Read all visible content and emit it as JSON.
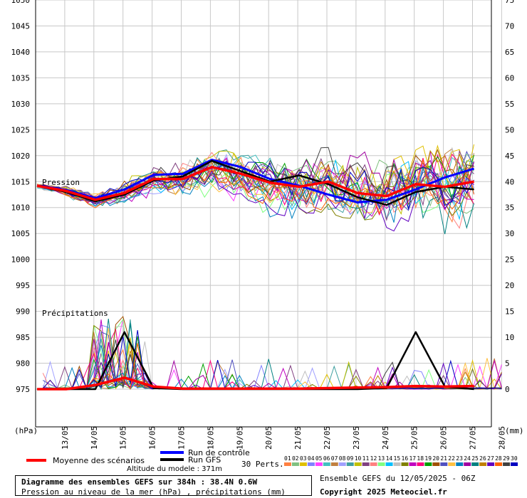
{
  "chart_data": {
    "type": "line",
    "x_dates": [
      "13/05",
      "14/05",
      "15/05",
      "16/05",
      "17/05",
      "18/05",
      "19/05",
      "20/05",
      "21/05",
      "22/05",
      "23/05",
      "24/05",
      "25/05",
      "26/05",
      "27/05",
      "28/05"
    ],
    "left_axis": {
      "label": "(hPa)",
      "min": 975,
      "max": 1050,
      "ticks": [
        1050,
        1045,
        1040,
        1035,
        1030,
        1025,
        1020,
        1015,
        1010,
        1005,
        1000,
        995,
        990,
        985,
        980,
        975
      ]
    },
    "right_axis": {
      "label": "(mm)",
      "min": 0,
      "max": 75,
      "ticks": [
        75,
        70,
        65,
        60,
        55,
        50,
        45,
        40,
        35,
        30,
        25,
        20,
        15,
        10,
        5,
        0
      ]
    },
    "panel_labels": {
      "pressure": "Pression",
      "precip": "Précipitations"
    },
    "mean_pressure": [
      1014.2,
      1013.2,
      1011.5,
      1012.8,
      1015.5,
      1015.5,
      1017.8,
      1016.5,
      1014.8,
      1014.0,
      1015.0,
      1012.8,
      1012.2,
      1014.5,
      1014.0,
      1015.0
    ],
    "control_pressure": [
      1014.2,
      1013.4,
      1011.8,
      1013.5,
      1016.3,
      1016.5,
      1019.2,
      1017.8,
      1015.5,
      1014.2,
      1012.5,
      1011.0,
      1011.5,
      1013.5,
      1015.8,
      1017.5
    ],
    "gfs_pressure": [
      1014.2,
      1013.0,
      1011.2,
      1012.5,
      1015.2,
      1016.0,
      1019.0,
      1017.0,
      1015.0,
      1016.2,
      1014.5,
      1012.0,
      1010.5,
      1013.0,
      1014.0,
      1013.5
    ],
    "mean_precip": [
      0,
      0,
      0.8,
      2.2,
      0.5,
      0.1,
      0.1,
      0.1,
      0.1,
      0.1,
      0.2,
      0.3,
      0.4,
      0.6,
      0.5,
      0.6
    ],
    "gfs_precip": [
      0,
      0,
      0,
      11.0,
      0.2,
      0,
      0,
      0,
      0,
      0,
      0,
      0,
      0.2,
      11.0,
      0.5,
      0
    ],
    "legend": {
      "mean": "Moyenne des scénarios",
      "control": "Run de contrôle",
      "gfs": "Run GFS",
      "perts": "30 Perts."
    },
    "perturbation_ids": [
      "01",
      "02",
      "03",
      "04",
      "05",
      "06",
      "07",
      "08",
      "09",
      "10",
      "11",
      "12",
      "13",
      "14",
      "15",
      "16",
      "17",
      "18",
      "19",
      "20",
      "21",
      "22",
      "23",
      "24",
      "25",
      "26",
      "27",
      "28",
      "29",
      "30"
    ],
    "perturbation_colors": [
      "#ff8040",
      "#80c080",
      "#e0c000",
      "#8080ff",
      "#ff40ff",
      "#40c0c0",
      "#c08040",
      "#a0a0ff",
      "#40a0a0",
      "#c0c000",
      "#804080",
      "#ff8080",
      "#80ff80",
      "#00c0ff",
      "#c0c0c0",
      "#808000",
      "#c000c0",
      "#ff0080",
      "#00a000",
      "#a05000",
      "#5050c0",
      "#ffc040",
      "#0080c0",
      "#a000a0",
      "#008080",
      "#c08000",
      "#6000c0",
      "#ff6000",
      "#404040",
      "#0000c0"
    ],
    "colors": {
      "mean": "#ff0000",
      "control": "#0000ff",
      "gfs": "#000000"
    }
  },
  "footer": {
    "altitude": "Altitude du modele : 371m",
    "title": "Diagramme des ensembles GEFS sur 384h : 38.4N 0.6W",
    "subtitle": "Pression au niveau de la mer (hPa) , précipitations (mm)",
    "ensemble": "Ensemble GEFS du 12/05/2025 - 06Z",
    "copyright": "Copyright 2025 Meteociel.fr"
  }
}
